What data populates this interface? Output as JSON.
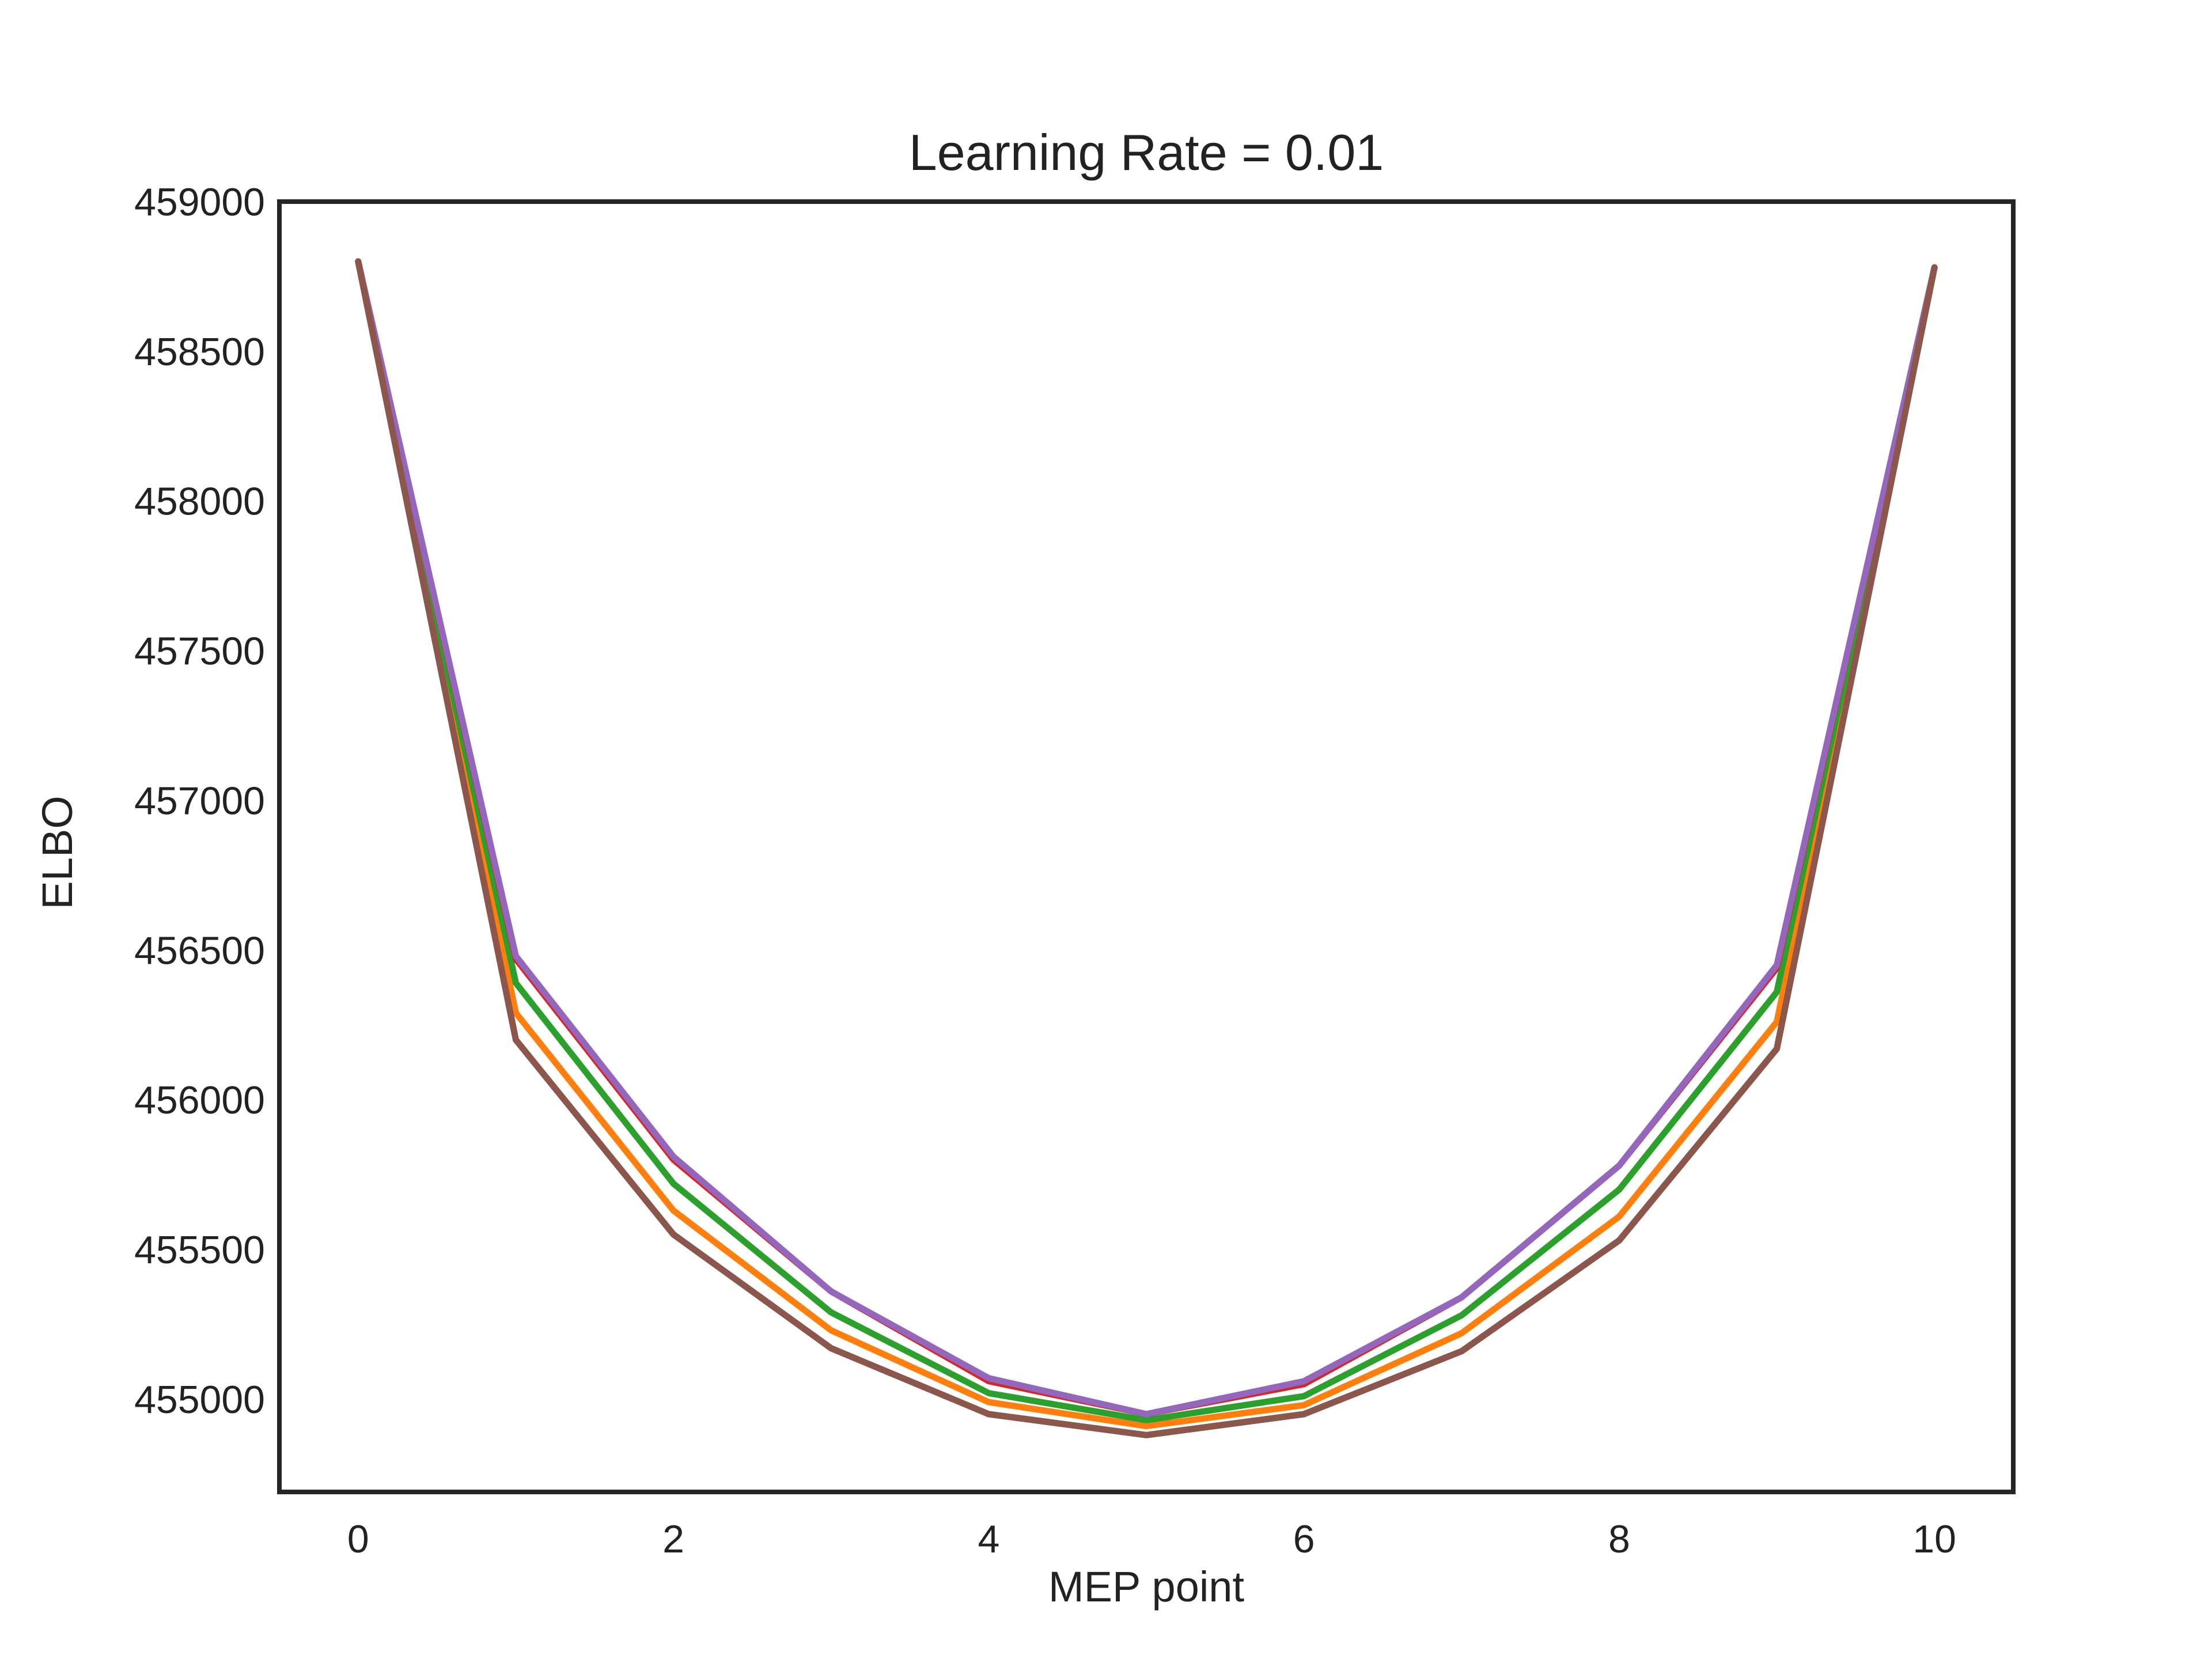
{
  "chart_data": {
    "type": "line",
    "title": "Learning Rate = 0.01",
    "xlabel": "MEP point",
    "ylabel": "ELBO",
    "xlim": [
      -0.5,
      10.5
    ],
    "ylim": [
      454690,
      459000
    ],
    "xticks": [
      0,
      2,
      4,
      6,
      8,
      10
    ],
    "yticks": [
      455000,
      455500,
      456000,
      456500,
      457000,
      457500,
      458000,
      458500,
      459000
    ],
    "grid": false,
    "legend": "none",
    "x": [
      0,
      1,
      2,
      3,
      4,
      5,
      6,
      7,
      8,
      9,
      10
    ],
    "series": [
      {
        "color": "#1f77b4",
        "values": [
          458800,
          456200,
          455550,
          455170,
          454950,
          454880,
          454950,
          455160,
          455530,
          456170,
          458780
        ]
      },
      {
        "color": "#ff7f0e",
        "values": [
          458800,
          456290,
          455630,
          455230,
          454990,
          454910,
          454980,
          455220,
          455610,
          456260,
          458780
        ]
      },
      {
        "color": "#2ca02c",
        "values": [
          458800,
          456390,
          455720,
          455290,
          455020,
          454930,
          455010,
          455280,
          455700,
          456360,
          458780
        ]
      },
      {
        "color": "#d62728",
        "values": [
          458800,
          456470,
          455800,
          455360,
          455060,
          454950,
          455050,
          455340,
          455780,
          456440,
          458780
        ]
      },
      {
        "color": "#9467bd",
        "values": [
          458800,
          456480,
          455810,
          455360,
          455070,
          454950,
          455060,
          455340,
          455780,
          456450,
          458780
        ]
      },
      {
        "color": "#8c564b",
        "values": [
          458800,
          456200,
          455550,
          455170,
          454950,
          454880,
          454950,
          455160,
          455530,
          456170,
          458780
        ]
      }
    ]
  }
}
